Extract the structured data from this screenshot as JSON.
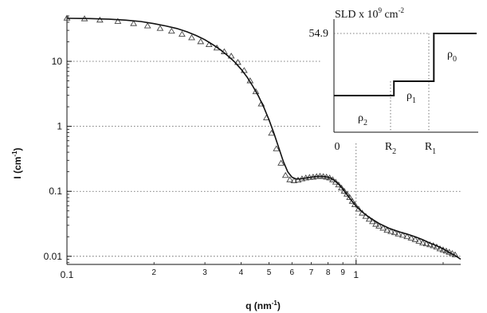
{
  "chart_data": [
    {
      "type": "scatter",
      "title": "",
      "xlabel": "q (nm",
      "xlabel_exp": "-1",
      "xlabel_tail": ")",
      "ylabel": "I (cm",
      "ylabel_exp": "-1",
      "ylabel_tail": ")",
      "xscale": "log",
      "yscale": "log",
      "xlim": [
        0.1,
        2.3
      ],
      "ylim": [
        0.0075,
        50
      ],
      "x_major_ticks": [
        {
          "v": 0.1,
          "label": "0.1"
        },
        {
          "v": 1,
          "label": "1"
        }
      ],
      "x_minor_ticks": [
        {
          "v": 0.2,
          "label": "2"
        },
        {
          "v": 0.3,
          "label": "3"
        },
        {
          "v": 0.4,
          "label": "4"
        },
        {
          "v": 0.5,
          "label": "5"
        },
        {
          "v": 0.6,
          "label": "6"
        },
        {
          "v": 0.7,
          "label": "7"
        },
        {
          "v": 0.8,
          "label": "8"
        },
        {
          "v": 0.9,
          "label": "9"
        }
      ],
      "y_major_ticks": [
        {
          "v": 10,
          "label": "10"
        },
        {
          "v": 1,
          "label": "1"
        },
        {
          "v": 0.1,
          "label": "0.1"
        },
        {
          "v": 0.01,
          "label": "0.01"
        }
      ],
      "grid": "dotted at major ticks",
      "series": [
        {
          "kind": "markers",
          "marker": "open-triangle",
          "x": [
            0.1,
            0.115,
            0.13,
            0.15,
            0.17,
            0.19,
            0.21,
            0.23,
            0.25,
            0.27,
            0.29,
            0.31,
            0.33,
            0.35,
            0.37,
            0.39,
            0.41,
            0.43,
            0.45,
            0.47,
            0.49,
            0.51,
            0.53,
            0.55,
            0.57,
            0.59,
            0.61,
            0.63,
            0.65,
            0.67,
            0.69,
            0.71,
            0.73,
            0.75,
            0.77,
            0.79,
            0.81,
            0.83,
            0.85,
            0.87,
            0.89,
            0.91,
            0.93,
            0.95,
            0.97,
            0.99,
            1.02,
            1.05,
            1.08,
            1.11,
            1.14,
            1.17,
            1.2,
            1.24,
            1.28,
            1.32,
            1.36,
            1.4,
            1.45,
            1.5,
            1.55,
            1.6,
            1.65,
            1.7,
            1.75,
            1.8,
            1.85,
            1.9,
            1.95,
            2.0,
            2.05,
            2.1,
            2.15,
            2.2
          ],
          "y": [
            46,
            45,
            43,
            41,
            38,
            35,
            32,
            29,
            26,
            23,
            20,
            18,
            16,
            14,
            12,
            9.6,
            7.2,
            5.0,
            3.4,
            2.2,
            1.35,
            0.78,
            0.45,
            0.27,
            0.175,
            0.15,
            0.145,
            0.148,
            0.155,
            0.16,
            0.163,
            0.165,
            0.168,
            0.17,
            0.168,
            0.165,
            0.16,
            0.15,
            0.138,
            0.125,
            0.112,
            0.1,
            0.09,
            0.08,
            0.07,
            0.062,
            0.053,
            0.046,
            0.041,
            0.037,
            0.034,
            0.031,
            0.029,
            0.027,
            0.025,
            0.024,
            0.023,
            0.022,
            0.021,
            0.02,
            0.019,
            0.018,
            0.017,
            0.016,
            0.0155,
            0.015,
            0.0145,
            0.0138,
            0.013,
            0.0125,
            0.012,
            0.0115,
            0.011,
            0.0105
          ]
        },
        {
          "kind": "line",
          "x": [
            0.1,
            0.12,
            0.14,
            0.16,
            0.18,
            0.2,
            0.22,
            0.24,
            0.26,
            0.28,
            0.3,
            0.32,
            0.34,
            0.36,
            0.38,
            0.4,
            0.42,
            0.44,
            0.46,
            0.48,
            0.5,
            0.52,
            0.54,
            0.56,
            0.58,
            0.6,
            0.62,
            0.64,
            0.66,
            0.68,
            0.7,
            0.72,
            0.74,
            0.76,
            0.78,
            0.8,
            0.82,
            0.84,
            0.86,
            0.88,
            0.9,
            0.92,
            0.94,
            0.96,
            0.98,
            1.0,
            1.05,
            1.1,
            1.15,
            1.2,
            1.3,
            1.4,
            1.5,
            1.6,
            1.7,
            1.8,
            1.9,
            2.0,
            2.1,
            2.2,
            2.3
          ],
          "y": [
            46,
            45.5,
            44.5,
            43,
            41,
            38,
            35,
            32,
            28.5,
            25,
            21.5,
            18,
            15,
            12.2,
            9.8,
            7.6,
            5.7,
            4.1,
            2.9,
            1.95,
            1.25,
            0.78,
            0.47,
            0.29,
            0.2,
            0.165,
            0.155,
            0.155,
            0.158,
            0.162,
            0.165,
            0.168,
            0.17,
            0.17,
            0.168,
            0.165,
            0.158,
            0.148,
            0.135,
            0.122,
            0.108,
            0.095,
            0.084,
            0.074,
            0.066,
            0.059,
            0.048,
            0.041,
            0.036,
            0.032,
            0.027,
            0.024,
            0.022,
            0.02,
            0.018,
            0.016,
            0.0145,
            0.013,
            0.0115,
            0.0103,
            0.009
          ]
        }
      ]
    },
    {
      "type": "line",
      "inset": true,
      "title_prefix": "SLD x 10",
      "title_exp1": "9",
      "title_mid": " cm",
      "title_exp2": "-2",
      "y_max_label": "54.9",
      "x_ticks": [
        {
          "label": "0",
          "sub": ""
        },
        {
          "label": "R",
          "sub": "2"
        },
        {
          "label": "R",
          "sub": "1"
        }
      ],
      "regions": [
        {
          "label": "ρ",
          "sub": "2",
          "level": 0.2
        },
        {
          "label": "ρ",
          "sub": "1",
          "level": 0.4
        },
        {
          "label": "ρ",
          "sub": "0",
          "level": 1.0
        }
      ],
      "profile_x": [
        0,
        0.42,
        0.42,
        0.7,
        0.7,
        1.0
      ],
      "profile_y": [
        0.2,
        0.2,
        0.4,
        0.4,
        1.0,
        1.0
      ]
    }
  ]
}
